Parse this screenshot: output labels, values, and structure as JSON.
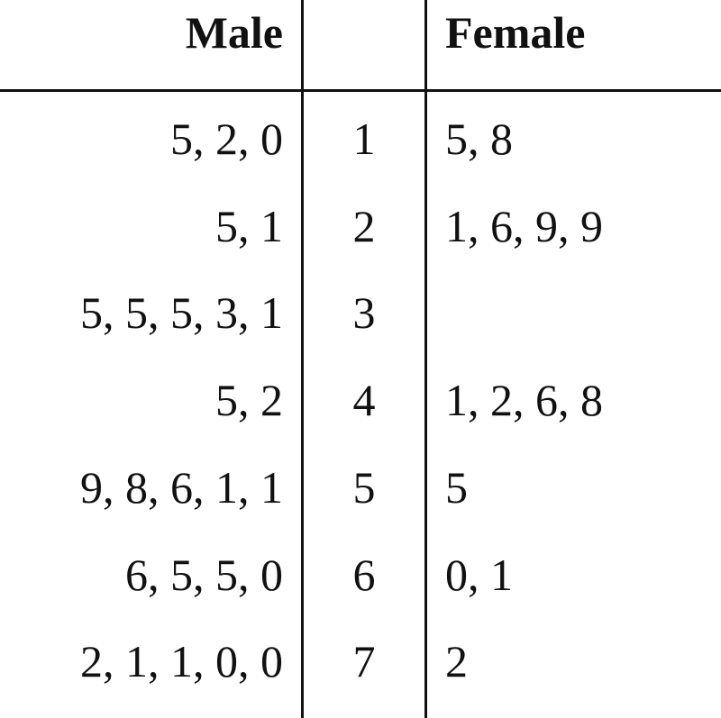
{
  "chart_data": {
    "type": "table",
    "headers": {
      "left": "Male",
      "stem": "",
      "right": "Female"
    },
    "rows": [
      {
        "left": "5, 2, 0",
        "stem": "1",
        "right": "5, 8"
      },
      {
        "left": "5, 1",
        "stem": "2",
        "right": "1, 6, 9, 9"
      },
      {
        "left": "5, 5, 5, 3, 1",
        "stem": "3",
        "right": ""
      },
      {
        "left": "5, 2",
        "stem": "4",
        "right": "1, 2, 6, 8"
      },
      {
        "left": "9, 8, 6, 1, 1",
        "stem": "5",
        "right": "5"
      },
      {
        "left": "6, 5, 5, 0",
        "stem": "6",
        "right": "0, 1"
      },
      {
        "left": "2, 1, 1, 0, 0",
        "stem": "7",
        "right": "2"
      }
    ]
  }
}
